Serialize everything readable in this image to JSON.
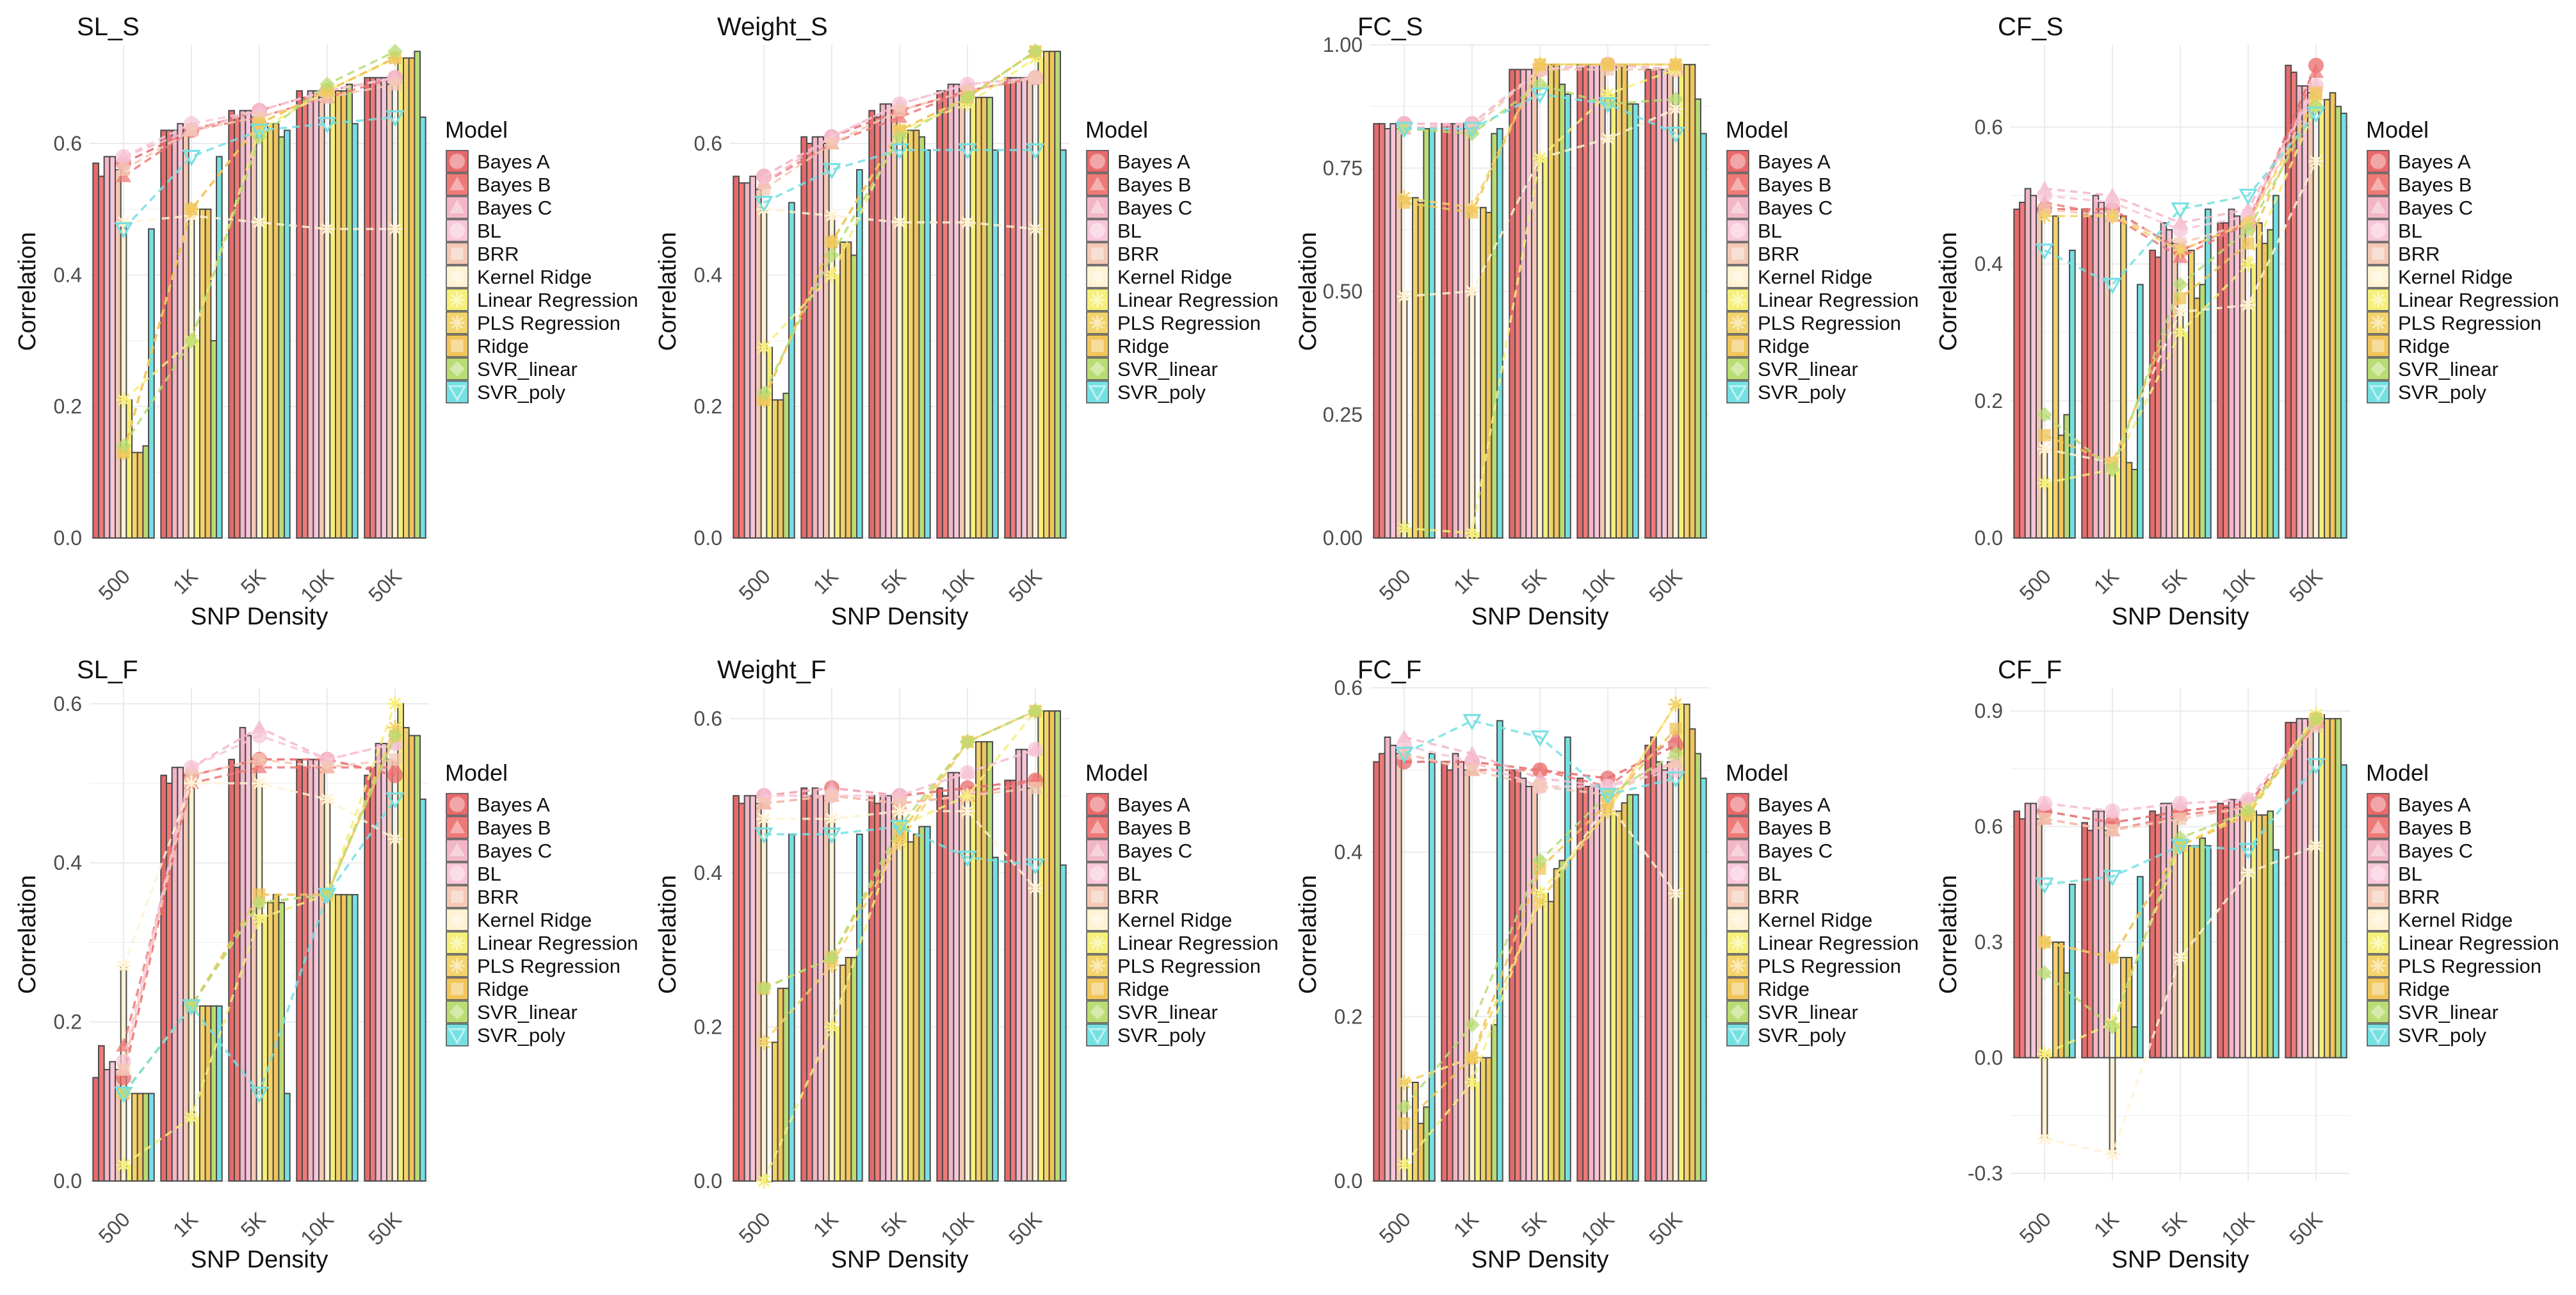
{
  "figure": {
    "xlabel": "SNP Density",
    "ylabel": "Correlation",
    "legend_title": "Model",
    "categories": [
      "500",
      "1K",
      "5K",
      "10K",
      "50K"
    ],
    "models": [
      "Bayes A",
      "Bayes B",
      "Bayes C",
      "BL",
      "BRR",
      "Kernel Ridge",
      "Linear Regression",
      "PLS Regression",
      "Ridge",
      "SVR_linear",
      "SVR_poly"
    ],
    "colors": [
      "#e8696b",
      "#ee7a78",
      "#f2b6c6",
      "#f7c6d8",
      "#f4c9b4",
      "#fff2d2",
      "#f6ef7a",
      "#f3d36a",
      "#f0c55a",
      "#b9dc73",
      "#74e0e2"
    ],
    "bar_outline": "#4a4a4a",
    "grid_color": "#ebebeb"
  },
  "chart_data": [
    {
      "type": "bar",
      "title": "SL_S",
      "xlabel": "SNP Density",
      "ylabel": "Correlation",
      "categories": [
        "500",
        "1K",
        "5K",
        "10K",
        "50K"
      ],
      "ylim": [
        0,
        0.75
      ],
      "yticks": [
        0.0,
        0.2,
        0.4,
        0.6
      ],
      "ytick_labels": [
        "0.0",
        "0.2",
        "0.4",
        "0.6"
      ],
      "series": [
        {
          "name": "Bayes A",
          "values": [
            0.57,
            0.62,
            0.65,
            0.68,
            0.7
          ]
        },
        {
          "name": "Bayes B",
          "values": [
            0.55,
            0.62,
            0.64,
            0.67,
            0.7
          ]
        },
        {
          "name": "Bayes C",
          "values": [
            0.58,
            0.62,
            0.65,
            0.68,
            0.7
          ]
        },
        {
          "name": "BL",
          "values": [
            0.58,
            0.63,
            0.65,
            0.68,
            0.7
          ]
        },
        {
          "name": "BRR",
          "values": [
            0.56,
            0.62,
            0.64,
            0.67,
            0.69
          ]
        },
        {
          "name": "Kernel Ridge",
          "values": [
            0.48,
            0.49,
            0.48,
            0.47,
            0.47
          ]
        },
        {
          "name": "Linear Regression",
          "values": [
            0.21,
            0.3,
            0.62,
            0.68,
            0.73
          ]
        },
        {
          "name": "PLS Regression",
          "values": [
            0.13,
            0.5,
            0.63,
            0.68,
            0.73
          ]
        },
        {
          "name": "Ridge",
          "values": [
            0.13,
            0.5,
            0.63,
            0.68,
            0.73
          ]
        },
        {
          "name": "SVR_linear",
          "values": [
            0.14,
            0.3,
            0.61,
            0.69,
            0.74
          ]
        },
        {
          "name": "SVR_poly",
          "values": [
            0.47,
            0.58,
            0.62,
            0.63,
            0.64
          ]
        }
      ]
    },
    {
      "type": "bar",
      "title": "Weight_S",
      "xlabel": "SNP Density",
      "ylabel": "Correlation",
      "categories": [
        "500",
        "1K",
        "5K",
        "10K",
        "50K"
      ],
      "ylim": [
        0,
        0.75
      ],
      "yticks": [
        0.0,
        0.2,
        0.4,
        0.6
      ],
      "ytick_labels": [
        "0.0",
        "0.2",
        "0.4",
        "0.6"
      ],
      "series": [
        {
          "name": "Bayes A",
          "values": [
            0.55,
            0.61,
            0.65,
            0.68,
            0.7
          ]
        },
        {
          "name": "Bayes B",
          "values": [
            0.54,
            0.6,
            0.64,
            0.68,
            0.7
          ]
        },
        {
          "name": "Bayes C",
          "values": [
            0.54,
            0.61,
            0.66,
            0.69,
            0.7
          ]
        },
        {
          "name": "BL",
          "values": [
            0.55,
            0.61,
            0.66,
            0.69,
            0.7
          ]
        },
        {
          "name": "BRR",
          "values": [
            0.53,
            0.6,
            0.65,
            0.68,
            0.7
          ]
        },
        {
          "name": "Kernel Ridge",
          "values": [
            0.5,
            0.49,
            0.48,
            0.48,
            0.47
          ]
        },
        {
          "name": "Linear Regression",
          "values": [
            0.29,
            0.4,
            0.62,
            0.66,
            0.73
          ]
        },
        {
          "name": "PLS Regression",
          "values": [
            0.21,
            0.45,
            0.62,
            0.67,
            0.74
          ]
        },
        {
          "name": "Ridge",
          "values": [
            0.21,
            0.45,
            0.62,
            0.67,
            0.74
          ]
        },
        {
          "name": "SVR_linear",
          "values": [
            0.22,
            0.43,
            0.61,
            0.67,
            0.74
          ]
        },
        {
          "name": "SVR_poly",
          "values": [
            0.51,
            0.56,
            0.59,
            0.59,
            0.59
          ]
        }
      ]
    },
    {
      "type": "bar",
      "title": "FC_S",
      "xlabel": "SNP Density",
      "ylabel": "Correlation",
      "categories": [
        "500",
        "1K",
        "5K",
        "10K",
        "50K"
      ],
      "ylim": [
        0,
        1.0
      ],
      "yticks": [
        0.0,
        0.25,
        0.5,
        0.75,
        1.0
      ],
      "ytick_labels": [
        "0.00",
        "0.25",
        "0.50",
        "0.75",
        "1.00"
      ],
      "series": [
        {
          "name": "Bayes A",
          "values": [
            0.84,
            0.84,
            0.95,
            0.96,
            0.95
          ]
        },
        {
          "name": "Bayes B",
          "values": [
            0.84,
            0.84,
            0.95,
            0.96,
            0.95
          ]
        },
        {
          "name": "Bayes C",
          "values": [
            0.83,
            0.84,
            0.95,
            0.96,
            0.95
          ]
        },
        {
          "name": "BL",
          "values": [
            0.84,
            0.84,
            0.95,
            0.96,
            0.95
          ]
        },
        {
          "name": "BRR",
          "values": [
            0.83,
            0.83,
            0.95,
            0.95,
            0.95
          ]
        },
        {
          "name": "Kernel Ridge",
          "values": [
            0.49,
            0.5,
            0.77,
            0.81,
            0.87
          ]
        },
        {
          "name": "Linear Regression",
          "values": [
            0.02,
            0.01,
            0.77,
            0.9,
            0.95
          ]
        },
        {
          "name": "PLS Regression",
          "values": [
            0.69,
            0.67,
            0.96,
            0.96,
            0.96
          ]
        },
        {
          "name": "Ridge",
          "values": [
            0.68,
            0.66,
            0.96,
            0.96,
            0.96
          ]
        },
        {
          "name": "SVR_linear",
          "values": [
            0.83,
            0.82,
            0.92,
            0.88,
            0.89
          ]
        },
        {
          "name": "SVR_poly",
          "values": [
            0.83,
            0.83,
            0.9,
            0.88,
            0.82
          ]
        }
      ]
    },
    {
      "type": "bar",
      "title": "CF_S",
      "xlabel": "SNP Density",
      "ylabel": "Correlation",
      "categories": [
        "500",
        "1K",
        "5K",
        "10K",
        "50K"
      ],
      "ylim": [
        0,
        0.72
      ],
      "yticks": [
        0.0,
        0.2,
        0.4,
        0.6
      ],
      "ytick_labels": [
        "0.0",
        "0.2",
        "0.4",
        "0.6"
      ],
      "series": [
        {
          "name": "Bayes A",
          "values": [
            0.48,
            0.48,
            0.42,
            0.46,
            0.69
          ]
        },
        {
          "name": "Bayes B",
          "values": [
            0.49,
            0.47,
            0.41,
            0.46,
            0.68
          ]
        },
        {
          "name": "Bayes C",
          "values": [
            0.51,
            0.5,
            0.46,
            0.48,
            0.66
          ]
        },
        {
          "name": "BL",
          "values": [
            0.5,
            0.49,
            0.45,
            0.47,
            0.66
          ]
        },
        {
          "name": "BRR",
          "values": [
            0.48,
            0.47,
            0.43,
            0.46,
            0.65
          ]
        },
        {
          "name": "Kernel Ridge",
          "values": [
            0.13,
            0.11,
            0.33,
            0.34,
            0.55
          ]
        },
        {
          "name": "Linear Regression",
          "values": [
            0.08,
            0.1,
            0.3,
            0.4,
            0.63
          ]
        },
        {
          "name": "PLS Regression",
          "values": [
            0.47,
            0.47,
            0.42,
            0.46,
            0.64
          ]
        },
        {
          "name": "Ridge",
          "values": [
            0.15,
            0.11,
            0.35,
            0.43,
            0.65
          ]
        },
        {
          "name": "SVR_linear",
          "values": [
            0.18,
            0.1,
            0.37,
            0.45,
            0.63
          ]
        },
        {
          "name": "SVR_poly",
          "values": [
            0.42,
            0.37,
            0.48,
            0.5,
            0.62
          ]
        }
      ]
    },
    {
      "type": "bar",
      "title": "SL_F",
      "xlabel": "SNP Density",
      "ylabel": "Correlation",
      "categories": [
        "500",
        "1K",
        "5K",
        "10K",
        "50K"
      ],
      "ylim": [
        0,
        0.62
      ],
      "yticks": [
        0.0,
        0.2,
        0.4,
        0.6
      ],
      "ytick_labels": [
        "0.0",
        "0.2",
        "0.4",
        "0.6"
      ],
      "series": [
        {
          "name": "Bayes A",
          "values": [
            0.13,
            0.51,
            0.53,
            0.53,
            0.51
          ]
        },
        {
          "name": "Bayes B",
          "values": [
            0.17,
            0.5,
            0.52,
            0.52,
            0.52
          ]
        },
        {
          "name": "Bayes C",
          "values": [
            0.14,
            0.52,
            0.57,
            0.53,
            0.55
          ]
        },
        {
          "name": "BL",
          "values": [
            0.15,
            0.52,
            0.56,
            0.53,
            0.55
          ]
        },
        {
          "name": "BRR",
          "values": [
            0.14,
            0.51,
            0.53,
            0.52,
            0.53
          ]
        },
        {
          "name": "Kernel Ridge",
          "values": [
            0.27,
            0.5,
            0.5,
            0.48,
            0.43
          ]
        },
        {
          "name": "Linear Regression",
          "values": [
            0.02,
            0.08,
            0.33,
            0.36,
            0.6
          ]
        },
        {
          "name": "PLS Regression",
          "values": [
            0.11,
            0.22,
            0.35,
            0.36,
            0.57
          ]
        },
        {
          "name": "Ridge",
          "values": [
            0.11,
            0.22,
            0.36,
            0.36,
            0.56
          ]
        },
        {
          "name": "SVR_linear",
          "values": [
            0.11,
            0.22,
            0.35,
            0.36,
            0.56
          ]
        },
        {
          "name": "SVR_poly",
          "values": [
            0.11,
            0.22,
            0.11,
            0.36,
            0.48
          ]
        }
      ]
    },
    {
      "type": "bar",
      "title": "Weight_F",
      "xlabel": "SNP Density",
      "ylabel": "Correlation",
      "categories": [
        "500",
        "1K",
        "5K",
        "10K",
        "50K"
      ],
      "ylim": [
        0,
        0.64
      ],
      "yticks": [
        0.0,
        0.2,
        0.4,
        0.6
      ],
      "ytick_labels": [
        "0.0",
        "0.2",
        "0.4",
        "0.6"
      ],
      "series": [
        {
          "name": "Bayes A",
          "values": [
            0.5,
            0.51,
            0.5,
            0.51,
            0.52
          ]
        },
        {
          "name": "Bayes B",
          "values": [
            0.49,
            0.5,
            0.49,
            0.5,
            0.52
          ]
        },
        {
          "name": "Bayes C",
          "values": [
            0.5,
            0.51,
            0.5,
            0.53,
            0.56
          ]
        },
        {
          "name": "BL",
          "values": [
            0.5,
            0.5,
            0.5,
            0.53,
            0.56
          ]
        },
        {
          "name": "BRR",
          "values": [
            0.49,
            0.5,
            0.49,
            0.5,
            0.51
          ]
        },
        {
          "name": "Kernel Ridge",
          "values": [
            0.47,
            0.47,
            0.48,
            0.48,
            0.38
          ]
        },
        {
          "name": "Linear Regression",
          "values": [
            0.0,
            0.2,
            0.46,
            0.5,
            0.61
          ]
        },
        {
          "name": "PLS Regression",
          "values": [
            0.18,
            0.28,
            0.44,
            0.57,
            0.61
          ]
        },
        {
          "name": "Ridge",
          "values": [
            0.25,
            0.29,
            0.45,
            0.57,
            0.61
          ]
        },
        {
          "name": "SVR_linear",
          "values": [
            0.25,
            0.29,
            0.46,
            0.57,
            0.61
          ]
        },
        {
          "name": "SVR_poly",
          "values": [
            0.45,
            0.45,
            0.46,
            0.42,
            0.41
          ]
        }
      ]
    },
    {
      "type": "bar",
      "title": "FC_F",
      "xlabel": "SNP Density",
      "ylabel": "Correlation",
      "categories": [
        "500",
        "1K",
        "5K",
        "10K",
        "50K"
      ],
      "ylim": [
        0,
        0.6
      ],
      "yticks": [
        0.0,
        0.2,
        0.4,
        0.6
      ],
      "ytick_labels": [
        "0.0",
        "0.2",
        "0.4",
        "0.6"
      ],
      "series": [
        {
          "name": "Bayes A",
          "values": [
            0.51,
            0.51,
            0.5,
            0.49,
            0.53
          ]
        },
        {
          "name": "Bayes B",
          "values": [
            0.52,
            0.5,
            0.5,
            0.48,
            0.54
          ]
        },
        {
          "name": "Bayes C",
          "values": [
            0.54,
            0.52,
            0.49,
            0.48,
            0.51
          ]
        },
        {
          "name": "BL",
          "values": [
            0.53,
            0.51,
            0.48,
            0.48,
            0.5
          ]
        },
        {
          "name": "BRR",
          "values": [
            0.52,
            0.5,
            0.48,
            0.47,
            0.51
          ]
        },
        {
          "name": "Kernel Ridge",
          "values": [
            0.12,
            0.15,
            0.34,
            0.46,
            0.35
          ]
        },
        {
          "name": "Linear Regression",
          "values": [
            0.02,
            0.12,
            0.35,
            0.45,
            0.58
          ]
        },
        {
          "name": "PLS Regression",
          "values": [
            0.12,
            0.15,
            0.34,
            0.45,
            0.58
          ]
        },
        {
          "name": "Ridge",
          "values": [
            0.07,
            0.15,
            0.38,
            0.46,
            0.55
          ]
        },
        {
          "name": "SVR_linear",
          "values": [
            0.09,
            0.19,
            0.39,
            0.47,
            0.52
          ]
        },
        {
          "name": "SVR_poly",
          "values": [
            0.52,
            0.56,
            0.54,
            0.47,
            0.49
          ]
        }
      ]
    },
    {
      "type": "bar",
      "title": "CF_F",
      "xlabel": "SNP Density",
      "ylabel": "Correlation",
      "categories": [
        "500",
        "1K",
        "5K",
        "10K",
        "50K"
      ],
      "ylim": [
        -0.32,
        0.96
      ],
      "yticks": [
        -0.3,
        0.0,
        0.3,
        0.6,
        0.9
      ],
      "ytick_labels": [
        "-0.3",
        "0.0",
        "0.3",
        "0.6",
        "0.9"
      ],
      "series": [
        {
          "name": "Bayes A",
          "values": [
            0.64,
            0.61,
            0.64,
            0.66,
            0.87
          ]
        },
        {
          "name": "Bayes B",
          "values": [
            0.62,
            0.59,
            0.63,
            0.65,
            0.87
          ]
        },
        {
          "name": "Bayes C",
          "values": [
            0.66,
            0.64,
            0.66,
            0.67,
            0.88
          ]
        },
        {
          "name": "BL",
          "values": [
            0.66,
            0.64,
            0.66,
            0.67,
            0.88
          ]
        },
        {
          "name": "BRR",
          "values": [
            0.62,
            0.59,
            0.62,
            0.65,
            0.86
          ]
        },
        {
          "name": "Kernel Ridge",
          "values": [
            -0.21,
            -0.25,
            0.26,
            0.48,
            0.55
          ]
        },
        {
          "name": "Linear Regression",
          "values": [
            0.01,
            0.09,
            0.55,
            0.64,
            0.89
          ]
        },
        {
          "name": "PLS Regression",
          "values": [
            0.3,
            0.26,
            0.55,
            0.63,
            0.88
          ]
        },
        {
          "name": "Ridge",
          "values": [
            0.3,
            0.26,
            0.55,
            0.63,
            0.88
          ]
        },
        {
          "name": "SVR_linear",
          "values": [
            0.22,
            0.08,
            0.57,
            0.64,
            0.88
          ]
        },
        {
          "name": "SVR_poly",
          "values": [
            0.45,
            0.47,
            0.55,
            0.54,
            0.76
          ]
        }
      ]
    }
  ]
}
